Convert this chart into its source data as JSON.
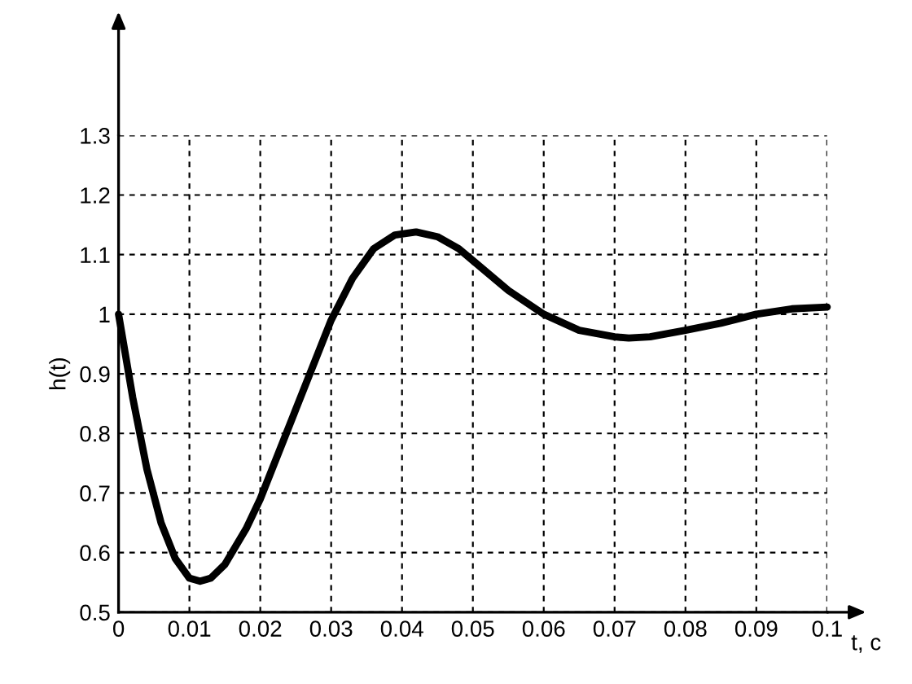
{
  "chart_data": {
    "type": "line",
    "xlabel": "t, c",
    "ylabel": "h(t)",
    "x": [
      0,
      0.002,
      0.004,
      0.006,
      0.008,
      0.01,
      0.0115,
      0.013,
      0.015,
      0.018,
      0.02,
      0.025,
      0.03,
      0.033,
      0.036,
      0.039,
      0.042,
      0.045,
      0.048,
      0.05,
      0.055,
      0.06,
      0.065,
      0.07,
      0.072,
      0.075,
      0.08,
      0.085,
      0.09,
      0.095,
      0.1
    ],
    "series": [
      {
        "color": "#000000",
        "values": [
          1.0,
          0.86,
          0.74,
          0.65,
          0.59,
          0.557,
          0.552,
          0.557,
          0.58,
          0.64,
          0.69,
          0.84,
          0.99,
          1.06,
          1.11,
          1.133,
          1.138,
          1.13,
          1.11,
          1.09,
          1.04,
          1.0,
          0.973,
          0.962,
          0.96,
          0.962,
          0.973,
          0.985,
          1.0,
          1.009,
          1.012
        ]
      }
    ],
    "xlim": [
      0,
      0.1
    ],
    "xticks": [
      0,
      0.01,
      0.02,
      0.03,
      0.04,
      0.05,
      0.06,
      0.07,
      0.08,
      0.09,
      0.1
    ],
    "ylim": [
      0.5,
      1.3
    ],
    "yticks": [
      0.5,
      0.6,
      0.7,
      0.8,
      0.9,
      1,
      1.1,
      1.2,
      1.3
    ],
    "grid": true,
    "line_style": "solid",
    "marker": "none"
  }
}
